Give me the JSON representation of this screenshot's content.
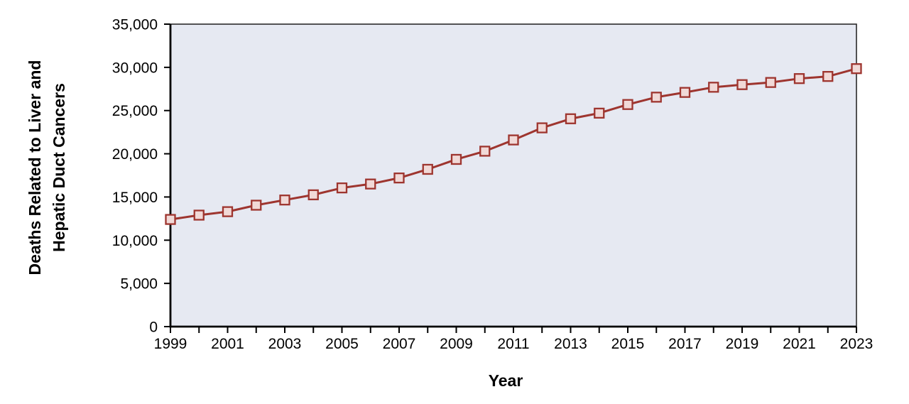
{
  "chart_data": {
    "type": "line",
    "title": "",
    "xlabel": "Year",
    "ylabel": "Deaths Related to Liver and Hepatic Duct Cancers",
    "ylabel_lines": [
      "Deaths Related to Liver and",
      "Hepatic Duct Cancers"
    ],
    "x": [
      1999,
      2000,
      2001,
      2002,
      2003,
      2004,
      2005,
      2006,
      2007,
      2008,
      2009,
      2010,
      2011,
      2012,
      2013,
      2014,
      2015,
      2016,
      2017,
      2018,
      2019,
      2020,
      2021,
      2022,
      2023
    ],
    "series": [
      {
        "name": "Deaths related to liver and hepatic duct cancers",
        "values": [
          12400,
          12900,
          13300,
          14050,
          14650,
          15250,
          16050,
          16500,
          17200,
          18200,
          19350,
          20300,
          21600,
          23000,
          24050,
          24700,
          25700,
          26550,
          27100,
          27700,
          28000,
          28250,
          28700,
          28950,
          29850
        ]
      }
    ],
    "xlim": [
      1999,
      2023
    ],
    "ylim": [
      0,
      35000
    ],
    "yticks": [
      0,
      5000,
      10000,
      15000,
      20000,
      25000,
      30000,
      35000
    ],
    "ytick_labels": [
      "0",
      "5,000",
      "10,000",
      "15,000",
      "20,000",
      "25,000",
      "30,000",
      "35,000"
    ],
    "xtick_minor_every": 1,
    "xtick_label_years": [
      1999,
      2001,
      2003,
      2005,
      2007,
      2009,
      2011,
      2013,
      2015,
      2017,
      2019,
      2021,
      2023
    ],
    "grid": false,
    "legend": "none",
    "marker": "square",
    "colors": {
      "line": "#9E352F",
      "marker_fill": "#F1D9D7",
      "marker_border": "#9E352F",
      "plot_background": "#E6E9F2",
      "axis": "#000000",
      "border": "#2B2B2B",
      "text": "#000000",
      "page_background": "#FFFFFF"
    }
  }
}
